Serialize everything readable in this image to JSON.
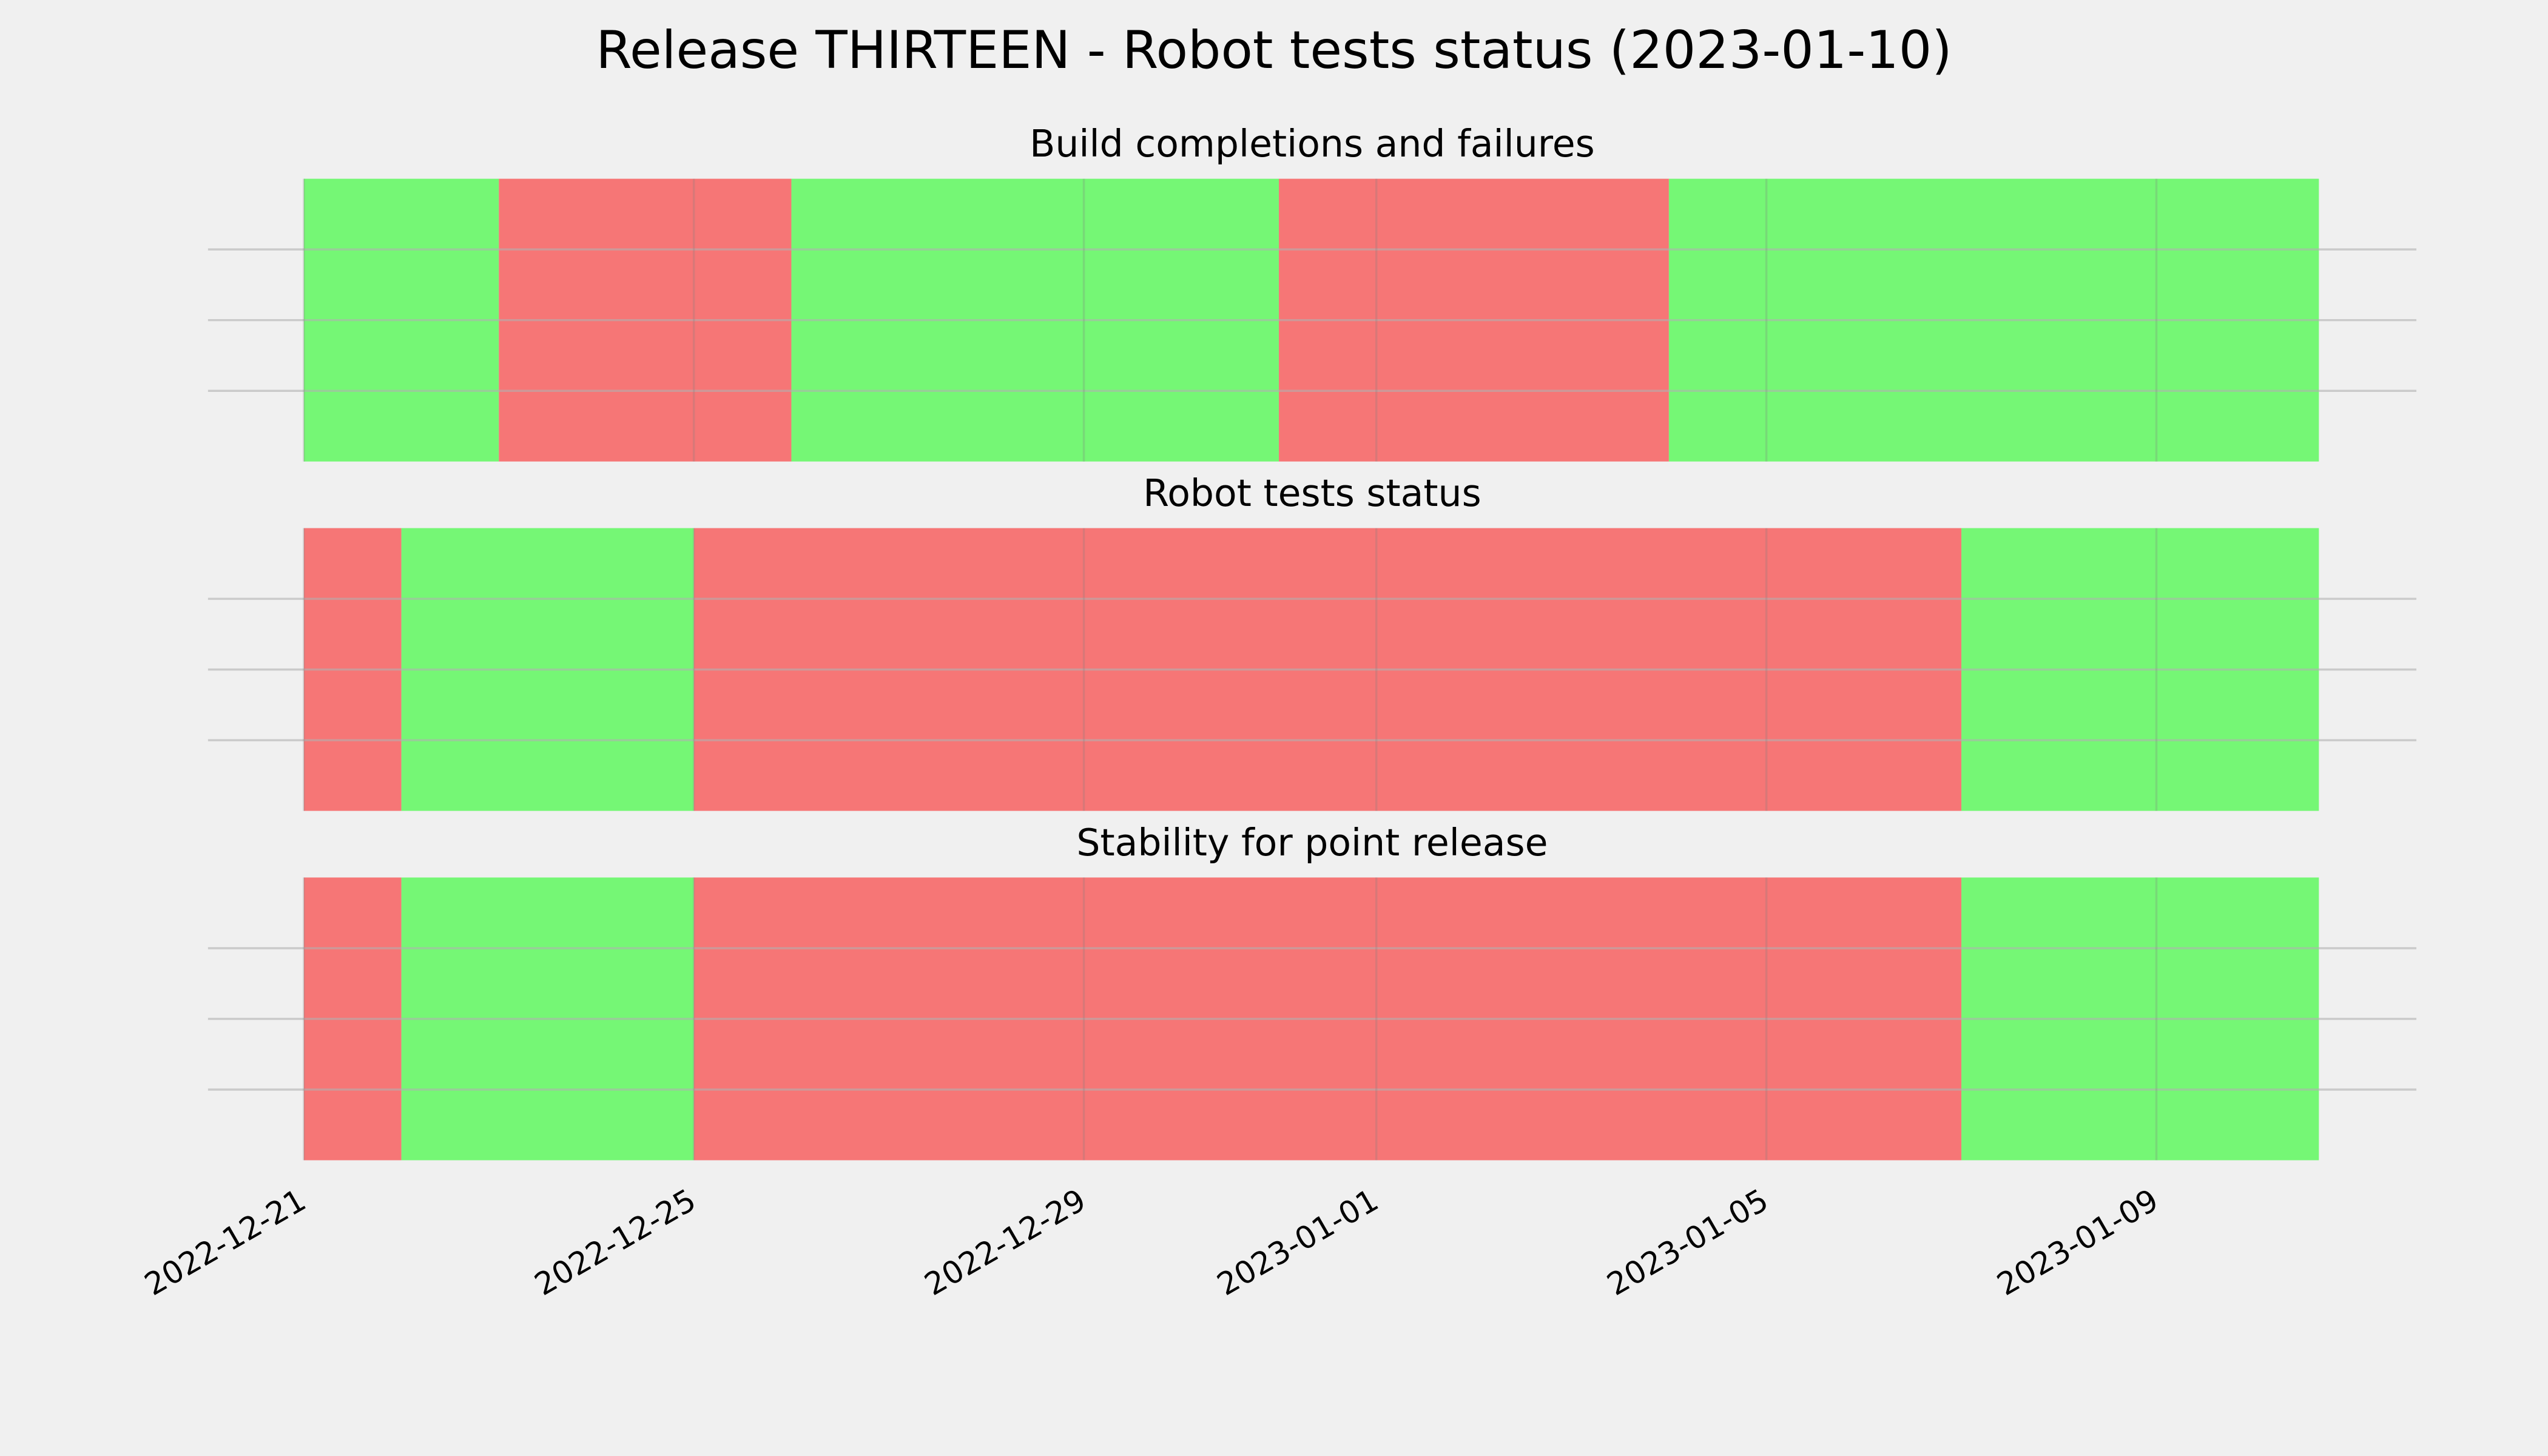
{
  "title": "Release THIRTEEN - Robot tests status (2023-01-10)",
  "chart_data": [
    {
      "type": "timeline",
      "title": "Build completions and failures",
      "segments": [
        {
          "start": "2022-12-21",
          "end": "2022-12-23",
          "color": "#75f775"
        },
        {
          "start": "2022-12-23",
          "end": "2022-12-26",
          "color": "#f67676"
        },
        {
          "start": "2022-12-26",
          "end": "2022-12-31",
          "color": "#75f775"
        },
        {
          "start": "2022-12-31",
          "end": "2023-01-04",
          "color": "#f67676"
        },
        {
          "start": "2023-01-04",
          "end": "2023-01-10T16:00",
          "color": "#75f775"
        }
      ],
      "xlim": [
        "2022-12-20T00:24",
        "2023-01-11T16:00"
      ],
      "xticks": [
        "2022-12-21",
        "2022-12-25",
        "2022-12-29",
        "2023-01-01",
        "2023-01-05",
        "2023-01-09"
      ],
      "ylim": [
        0,
        1
      ],
      "yticks": [
        0.25,
        0.5,
        0.75
      ],
      "grid": true
    },
    {
      "type": "timeline",
      "title": "Robot tests status",
      "segments": [
        {
          "start": "2022-12-21",
          "end": "2022-12-22",
          "color": "#f67676"
        },
        {
          "start": "2022-12-22",
          "end": "2022-12-25",
          "color": "#75f775"
        },
        {
          "start": "2022-12-25",
          "end": "2023-01-07",
          "color": "#f67676"
        },
        {
          "start": "2023-01-07",
          "end": "2023-01-10T16:00",
          "color": "#75f775"
        }
      ],
      "xlim": [
        "2022-12-20T00:24",
        "2023-01-11T16:00"
      ],
      "xticks": [
        "2022-12-21",
        "2022-12-25",
        "2022-12-29",
        "2023-01-01",
        "2023-01-05",
        "2023-01-09"
      ],
      "ylim": [
        0,
        1
      ],
      "yticks": [
        0.25,
        0.5,
        0.75
      ],
      "grid": true
    },
    {
      "type": "timeline",
      "title": "Stability for point release",
      "segments": [
        {
          "start": "2022-12-21",
          "end": "2022-12-22",
          "color": "#f67676"
        },
        {
          "start": "2022-12-22",
          "end": "2022-12-25",
          "color": "#75f775"
        },
        {
          "start": "2022-12-25",
          "end": "2023-01-07",
          "color": "#f67676"
        },
        {
          "start": "2023-01-07",
          "end": "2023-01-10T16:00",
          "color": "#75f775"
        }
      ],
      "xlim": [
        "2022-12-20T00:24",
        "2023-01-11T16:00"
      ],
      "xticks": [
        "2022-12-21",
        "2022-12-25",
        "2022-12-29",
        "2023-01-01",
        "2023-01-05",
        "2023-01-09"
      ],
      "ylim": [
        0,
        1
      ],
      "yticks": [
        0.25,
        0.5,
        0.75
      ],
      "grid": true,
      "show_xtick_labels": true
    }
  ]
}
